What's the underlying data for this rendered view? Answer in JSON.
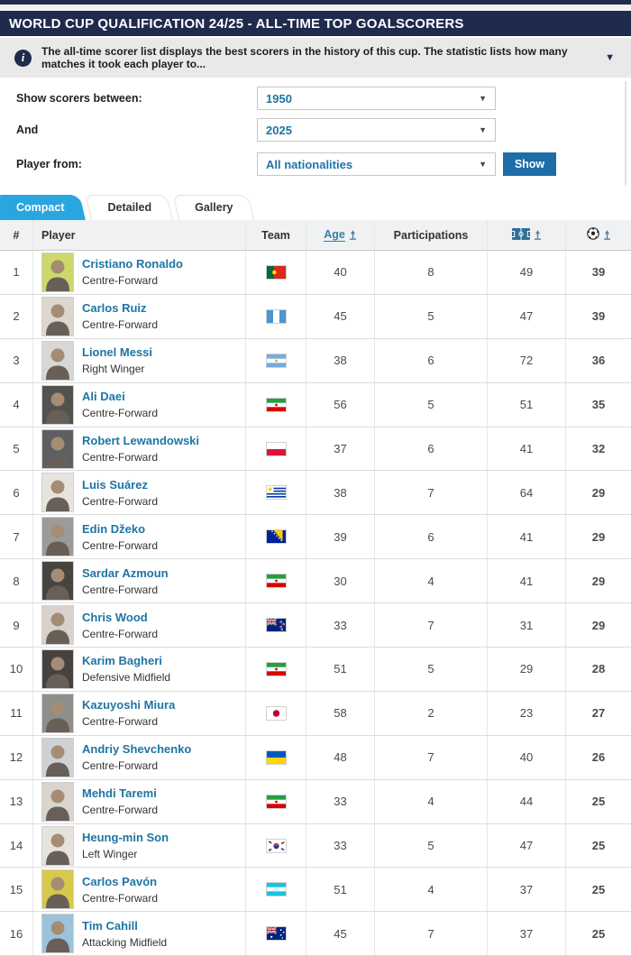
{
  "colors": {
    "navy": "#1f2b4d",
    "accent_tab_blue": "#2aa6df",
    "link_blue": "#1d75a3",
    "button_blue": "#1d6da8",
    "pitch_icon_blue": "#2e6f96"
  },
  "header": {
    "title": "WORLD CUP QUALIFICATION 24/25 - ALL-TIME TOP GOALSCORERS"
  },
  "info": {
    "icon": "info-icon",
    "i_glyph": "i",
    "text": "The all-time scorer list displays the best scorers in the history of this cup. The statistic lists how many matches it took each player to...",
    "chevron": "▼"
  },
  "filters": {
    "between_label": "Show scorers between:",
    "between_value": "1950",
    "and_label": "And",
    "and_value": "2025",
    "from_label": "Player from:",
    "from_value": "All nationalities",
    "chevron": "▼",
    "show_label": "Show"
  },
  "tabs": [
    {
      "label": "Compact",
      "active": true
    },
    {
      "label": "Detailed",
      "active": false
    },
    {
      "label": "Gallery",
      "active": false
    }
  ],
  "table": {
    "columns": {
      "rank": "#",
      "player": "Player",
      "team": "Team",
      "age": "Age",
      "participations": "Participations",
      "matches_icon": "pitch-icon",
      "goals_icon": "football-icon",
      "sort_icon": "sort-arrow-icon"
    },
    "rows": [
      {
        "rank": 1,
        "name": "Cristiano Ronaldo",
        "position": "Centre-Forward",
        "country": "Portugal",
        "age": 40,
        "participations": 8,
        "matches": 49,
        "goals": 39,
        "photo_bg": "#ccd86a"
      },
      {
        "rank": 2,
        "name": "Carlos Ruiz",
        "position": "Centre-Forward",
        "country": "Guatemala",
        "age": 45,
        "participations": 5,
        "matches": 47,
        "goals": 39,
        "photo_bg": "#ddd6cc"
      },
      {
        "rank": 3,
        "name": "Lionel Messi",
        "position": "Right Winger",
        "country": "Argentina",
        "age": 38,
        "participations": 6,
        "matches": 72,
        "goals": 36,
        "photo_bg": "#d7d7d5"
      },
      {
        "rank": 4,
        "name": "Ali Daei",
        "position": "Centre-Forward",
        "country": "Iran",
        "age": 56,
        "participations": 5,
        "matches": 51,
        "goals": 35,
        "photo_bg": "#54524e"
      },
      {
        "rank": 5,
        "name": "Robert Lewandowski",
        "position": "Centre-Forward",
        "country": "Poland",
        "age": 37,
        "participations": 6,
        "matches": 41,
        "goals": 32,
        "photo_bg": "#5d6063"
      },
      {
        "rank": 6,
        "name": "Luis Suárez",
        "position": "Centre-Forward",
        "country": "Uruguay",
        "age": 38,
        "participations": 7,
        "matches": 64,
        "goals": 29,
        "photo_bg": "#e7e4e0"
      },
      {
        "rank": 7,
        "name": "Edin Džeko",
        "position": "Centre-Forward",
        "country": "Bosnia-Herzegovina",
        "age": 39,
        "participations": 6,
        "matches": 41,
        "goals": 29,
        "photo_bg": "#9b9b99"
      },
      {
        "rank": 8,
        "name": "Sardar Azmoun",
        "position": "Centre-Forward",
        "country": "Iran",
        "age": 30,
        "participations": 4,
        "matches": 41,
        "goals": 29,
        "photo_bg": "#474440"
      },
      {
        "rank": 9,
        "name": "Chris Wood",
        "position": "Centre-Forward",
        "country": "New Zealand",
        "age": 33,
        "participations": 7,
        "matches": 31,
        "goals": 29,
        "photo_bg": "#d9d2cc"
      },
      {
        "rank": 10,
        "name": "Karim Bagheri",
        "position": "Defensive Midfield",
        "country": "Iran",
        "age": 51,
        "participations": 5,
        "matches": 29,
        "goals": 28,
        "photo_bg": "#454240"
      },
      {
        "rank": 11,
        "name": "Kazuyoshi Miura",
        "position": "Centre-Forward",
        "country": "Japan",
        "age": 58,
        "participations": 2,
        "matches": 23,
        "goals": 27,
        "photo_bg": "#8e8e8a"
      },
      {
        "rank": 12,
        "name": "Andriy Shevchenko",
        "position": "Centre-Forward",
        "country": "Ukraine",
        "age": 48,
        "participations": 7,
        "matches": 40,
        "goals": 26,
        "photo_bg": "#ced2d5"
      },
      {
        "rank": 13,
        "name": "Mehdi Taremi",
        "position": "Centre-Forward",
        "country": "Iran",
        "age": 33,
        "participations": 4,
        "matches": 44,
        "goals": 25,
        "photo_bg": "#d9d4ce"
      },
      {
        "rank": 14,
        "name": "Heung-min Son",
        "position": "Left Winger",
        "country": "South Korea",
        "age": 33,
        "participations": 5,
        "matches": 47,
        "goals": 25,
        "photo_bg": "#e6e3de"
      },
      {
        "rank": 15,
        "name": "Carlos Pavón",
        "position": "Centre-Forward",
        "country": "Honduras",
        "age": 51,
        "participations": 4,
        "matches": 37,
        "goals": 25,
        "photo_bg": "#d8c84c"
      },
      {
        "rank": 16,
        "name": "Tim Cahill",
        "position": "Attacking Midfield",
        "country": "Australia",
        "age": 45,
        "participations": 7,
        "matches": 37,
        "goals": 25,
        "photo_bg": "#9cc2dc"
      }
    ]
  }
}
